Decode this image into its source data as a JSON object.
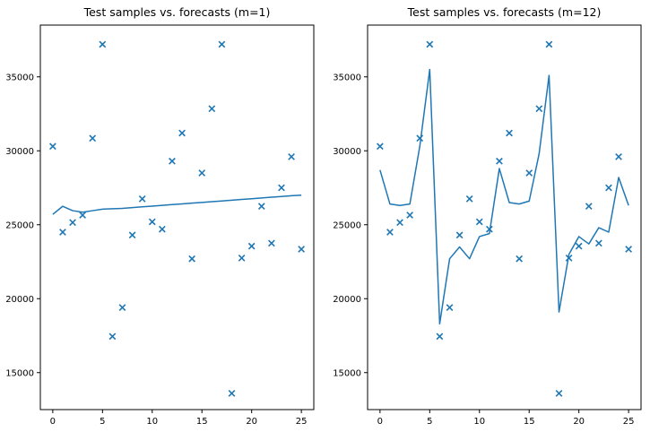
{
  "colors": {
    "series": "#1f77b4",
    "axis": "#000000",
    "background": "#ffffff"
  },
  "chart_data": [
    {
      "type": "line",
      "title": "Test samples vs. forecasts (m=1)",
      "xlabel": "",
      "ylabel": "",
      "xlim": [
        -1.25,
        26.25
      ],
      "ylim": [
        12500,
        38500
      ],
      "xticks": [
        0,
        5,
        10,
        15,
        20,
        25
      ],
      "yticks": [
        15000,
        20000,
        25000,
        30000,
        35000
      ],
      "grid": false,
      "x": [
        0,
        1,
        2,
        3,
        4,
        5,
        6,
        7,
        8,
        9,
        10,
        11,
        12,
        13,
        14,
        15,
        16,
        17,
        18,
        19,
        20,
        21,
        22,
        23,
        24,
        25
      ],
      "series": [
        {
          "kind": "scatter",
          "marker": "x",
          "values": [
            30300,
            24500,
            25150,
            25650,
            30850,
            37200,
            17450,
            19400,
            24300,
            26750,
            25200,
            24700,
            29300,
            31200,
            22700,
            28500,
            32850,
            37200,
            13600,
            22750,
            23550,
            26250,
            23750,
            27500,
            29600,
            23350
          ]
        },
        {
          "kind": "line",
          "values": [
            25700,
            26250,
            25950,
            25850,
            25950,
            26050,
            26080,
            26110,
            26160,
            26210,
            26260,
            26310,
            26360,
            26410,
            26460,
            26510,
            26560,
            26610,
            26660,
            26710,
            26760,
            26810,
            26860,
            26910,
            26960,
            27000
          ]
        }
      ]
    },
    {
      "type": "line",
      "title": "Test samples vs. forecasts (m=12)",
      "xlabel": "",
      "ylabel": "",
      "xlim": [
        -1.25,
        26.25
      ],
      "ylim": [
        12500,
        38500
      ],
      "xticks": [
        0,
        5,
        10,
        15,
        20,
        25
      ],
      "yticks": [
        15000,
        20000,
        25000,
        30000,
        35000
      ],
      "grid": false,
      "x": [
        0,
        1,
        2,
        3,
        4,
        5,
        6,
        7,
        8,
        9,
        10,
        11,
        12,
        13,
        14,
        15,
        16,
        17,
        18,
        19,
        20,
        21,
        22,
        23,
        24,
        25
      ],
      "series": [
        {
          "kind": "scatter",
          "marker": "x",
          "values": [
            30300,
            24500,
            25150,
            25650,
            30850,
            37200,
            17450,
            19400,
            24300,
            26750,
            25200,
            24700,
            29300,
            31200,
            22700,
            28500,
            32850,
            37200,
            13600,
            22750,
            23550,
            26250,
            23750,
            27500,
            29600,
            23350
          ]
        },
        {
          "kind": "line",
          "values": [
            28700,
            26400,
            26300,
            26400,
            30300,
            35500,
            18300,
            22700,
            23500,
            22700,
            24200,
            24400,
            28800,
            26500,
            26400,
            26600,
            29800,
            35100,
            19100,
            23000,
            24200,
            23700,
            24800,
            24500,
            28200,
            26300
          ]
        }
      ]
    }
  ]
}
